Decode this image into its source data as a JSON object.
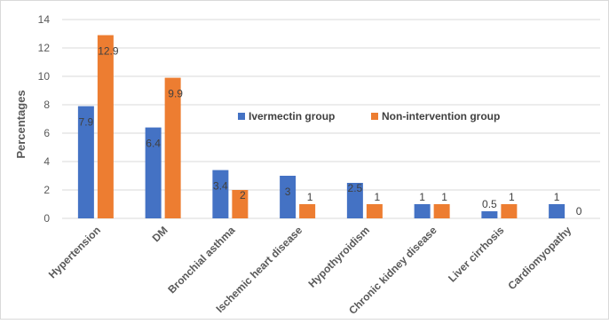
{
  "chart_data": {
    "type": "bar",
    "title": "",
    "xlabel": "",
    "ylabel": "Percentages",
    "ylim": [
      0,
      14
    ],
    "yticks": [
      0,
      2,
      4,
      6,
      8,
      10,
      12,
      14
    ],
    "grid": true,
    "legend_position": "right-middle",
    "categories": [
      "Hypertension",
      "DM",
      "Bronchial asthma",
      "Ischemic heart disease",
      "Hypothyroidism",
      "Chronic kidney disease",
      "Liver cirrhosis",
      "Cardiomyopathy"
    ],
    "series": [
      {
        "name": "Ivermectin group",
        "color": "#4472C4",
        "values": [
          7.9,
          6.4,
          3.4,
          3,
          2.5,
          1,
          0.5,
          1
        ]
      },
      {
        "name": "Non-intervention group",
        "color": "#ED7D31",
        "values": [
          12.9,
          9.9,
          2,
          1,
          1,
          1,
          1,
          0
        ]
      }
    ]
  }
}
